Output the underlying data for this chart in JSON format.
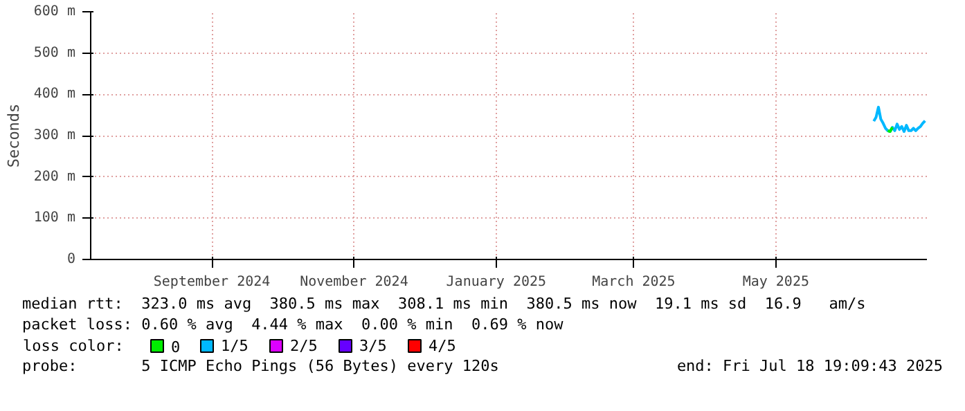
{
  "chart_data": {
    "type": "line",
    "ylabel": "Seconds",
    "legend_title": "loss color:",
    "legend": "bottom",
    "grid": true,
    "line_style": "solid",
    "marker": "none",
    "x": [
      "2025-06-26",
      "2025-06-27",
      "2025-06-28",
      "2025-06-29",
      "2025-06-30",
      "2025-07-01",
      "2025-07-02",
      "2025-07-03",
      "2025-07-04",
      "2025-07-05",
      "2025-07-06",
      "2025-07-07",
      "2025-07-08",
      "2025-07-09",
      "2025-07-10",
      "2025-07-11",
      "2025-07-12",
      "2025-07-13",
      "2025-07-14",
      "2025-07-15",
      "2025-07-16",
      "2025-07-17",
      "2025-07-18"
    ],
    "series": [
      {
        "name": "0",
        "color": "#00ee00",
        "values": [
          null,
          null,
          null,
          null,
          null,
          null,
          312,
          310,
          320,
          null,
          null,
          null,
          null,
          null,
          null,
          null,
          null,
          null,
          null,
          null,
          null,
          null,
          null
        ]
      },
      {
        "name": "1/5",
        "color": "#00b8ff",
        "values": [
          335,
          345,
          369,
          340,
          330,
          318,
          312,
          310,
          320,
          312,
          328,
          315,
          322,
          310,
          325,
          312,
          312,
          318,
          312,
          318,
          322,
          330,
          336
        ]
      },
      {
        "name": "2/5",
        "color": "#dd00ff",
        "values": [
          null,
          null,
          null,
          null,
          null,
          null,
          null,
          null,
          null,
          null,
          null,
          null,
          null,
          null,
          null,
          null,
          null,
          null,
          null,
          null,
          null,
          null,
          null
        ]
      },
      {
        "name": "3/5",
        "color": "#6600ff",
        "values": [
          null,
          null,
          null,
          null,
          null,
          null,
          null,
          null,
          null,
          null,
          null,
          null,
          null,
          null,
          null,
          null,
          null,
          null,
          null,
          null,
          null,
          null,
          null
        ]
      },
      {
        "name": "4/5",
        "color": "#ff0000",
        "values": [
          null,
          null,
          null,
          null,
          null,
          null,
          null,
          null,
          null,
          null,
          null,
          null,
          null,
          null,
          null,
          null,
          null,
          null,
          null,
          null,
          null,
          null,
          null
        ]
      }
    ],
    "xlim": [
      "2024-07-25",
      "2025-07-18T19:09"
    ],
    "xticks": [
      {
        "value": "2024-09-15",
        "label": "September 2024"
      },
      {
        "value": "2024-11-15",
        "label": "November 2024"
      },
      {
        "value": "2025-01-15",
        "label": "January 2025"
      },
      {
        "value": "2025-03-15",
        "label": "March 2025"
      },
      {
        "value": "2025-05-15",
        "label": "May 2025"
      }
    ],
    "ylim": [
      0,
      600
    ],
    "yticks": [
      0,
      {
        "value": 100,
        "label": "100 m"
      },
      {
        "value": 200,
        "label": "200 m"
      },
      {
        "value": 300,
        "label": "300 m"
      },
      {
        "value": 400,
        "label": "400 m"
      },
      {
        "value": 500,
        "label": "500 m"
      },
      {
        "value": 600,
        "label": "600 m"
      }
    ],
    "annotations": [
      "median rtt:  323.0 ms avg  380.5 ms max  308.1 ms min  380.5 ms now  19.1 ms sd  16.9   am/s",
      "packet loss: 0.60 % avg  4.44 % max  0.00 % min  0.69 % now",
      "probe:       5 ICMP Echo Pings (56 Bytes) every 120s",
      "end: Fri Jul 18 19:09:43 2025"
    ]
  }
}
